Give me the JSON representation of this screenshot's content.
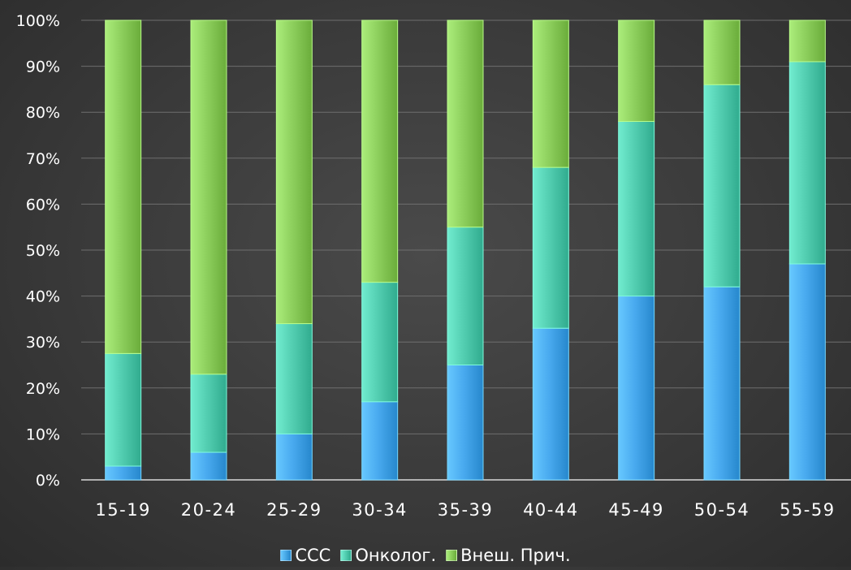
{
  "chart_data": {
    "type": "bar",
    "stacked": true,
    "percent": true,
    "title": "",
    "xlabel": "",
    "ylabel": "",
    "ylim": [
      0,
      100
    ],
    "yticks": [
      "0%",
      "10%",
      "20%",
      "30%",
      "40%",
      "50%",
      "60%",
      "70%",
      "80%",
      "90%",
      "100%"
    ],
    "categories": [
      "15-19",
      "20-24",
      "25-29",
      "30-34",
      "35-39",
      "40-44",
      "45-49",
      "50-54",
      "55-59"
    ],
    "series": [
      {
        "name": "ССС",
        "color": "#3a9be0",
        "values": [
          3,
          6,
          10,
          17,
          25,
          33,
          40,
          42,
          47
        ]
      },
      {
        "name": "Онколог.",
        "color": "#44bfa2",
        "values": [
          24.5,
          17,
          24,
          26,
          30,
          35,
          38,
          44,
          44
        ]
      },
      {
        "name": "Внеш. Прич.",
        "color": "#7ec04e",
        "values": [
          72.5,
          77,
          66,
          57,
          45,
          32,
          22,
          14,
          9
        ]
      }
    ],
    "grid": true,
    "legend_position": "bottom"
  }
}
